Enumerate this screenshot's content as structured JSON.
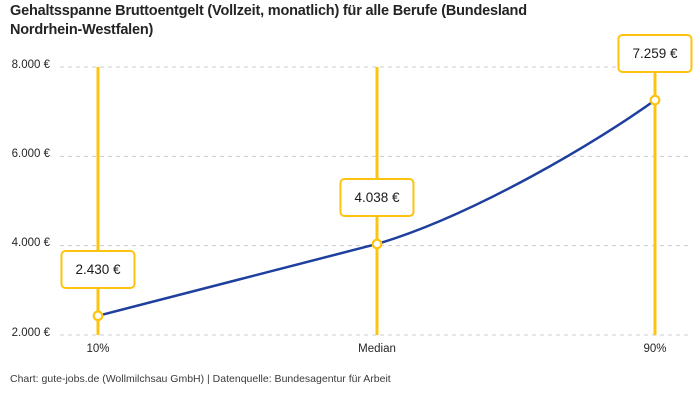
{
  "title": {
    "line1": "Gehaltsspanne Bruttoentgelt (Vollzeit, monatlich) für alle Berufe (Bundesland",
    "line2": "Nordrhein-Westfalen)"
  },
  "footer": {
    "attribution": "Chart: gute-jobs.de (Wollmilchsau GmbH) | Datenquelle: Bundesagentur für Arbeit"
  },
  "colors": {
    "accent_yellow": "#fdc40f",
    "line_blue": "#1e3f9e",
    "grid_gray": "#cccccc"
  },
  "chart_data": {
    "type": "line",
    "title": "Gehaltsspanne Bruttoentgelt (Vollzeit, monatlich) für alle Berufe (Bundesland Nordrhein-Westfalen)",
    "categories": [
      "10%",
      "Median",
      "90%"
    ],
    "points": [
      {
        "category": "10%",
        "value": 2430,
        "label": "2.430 €"
      },
      {
        "category": "Median",
        "value": 4038,
        "label": "4.038 €"
      },
      {
        "category": "90%",
        "value": 7259,
        "label": "7.259 €"
      }
    ],
    "y_ticks": [
      {
        "value": 8000,
        "label": "8.000 €"
      },
      {
        "value": 6000,
        "label": "6.000 €"
      },
      {
        "value": 4000,
        "label": "4.000 €"
      },
      {
        "value": 2000,
        "label": "2.000 €"
      }
    ],
    "xlabel": "",
    "ylabel": "",
    "ylim": [
      2000,
      8000
    ],
    "grid": "horizontal-dashed",
    "legend": "none",
    "source": "Bundesagentur für Arbeit",
    "credit": "gute-jobs.de (Wollmilchsau GmbH)"
  }
}
